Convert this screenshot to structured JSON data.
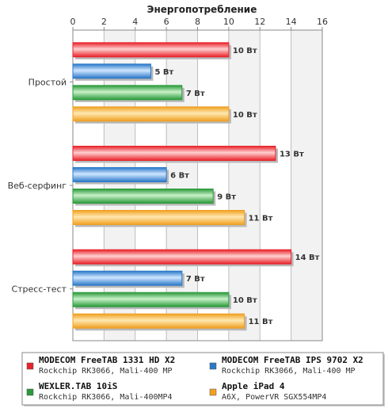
{
  "chart_data": {
    "type": "bar",
    "orientation": "horizontal",
    "title": "Энергопотребление",
    "xlim": [
      0,
      16
    ],
    "ticks": [
      0,
      2,
      4,
      6,
      8,
      10,
      12,
      14,
      16
    ],
    "grid": true,
    "legend_position": "bottom",
    "unit_suffix": " Вт",
    "categories": [
      "Простой",
      "Веб-серфинг",
      "Стресс-тест"
    ],
    "series": [
      {
        "name": "MODECOM FreeTAB 1331 HD X2",
        "sub": "Rockchip RK3066, Mali-400 MP",
        "color": "#e8222a",
        "light": "#ffd0d0",
        "values": [
          10,
          13,
          14
        ]
      },
      {
        "name": "MODECOM FreeTAB IPS 9702 X2",
        "sub": "Rockchip RK3066, Mali-400 MP",
        "color": "#2a78c8",
        "light": "#cfe6ff",
        "values": [
          5,
          6,
          7
        ]
      },
      {
        "name": "WEXLER.TAB 10iS",
        "sub": "Rockchip RK3066, Mali-400MP4",
        "color": "#2a9a3a",
        "light": "#c8f0c8",
        "values": [
          7,
          9,
          10
        ]
      },
      {
        "name": "Apple iPad 4",
        "sub": "A6X, PowerVR SGX554MP4",
        "color": "#f0a020",
        "light": "#ffe8b0",
        "values": [
          10,
          11,
          11
        ]
      }
    ]
  }
}
